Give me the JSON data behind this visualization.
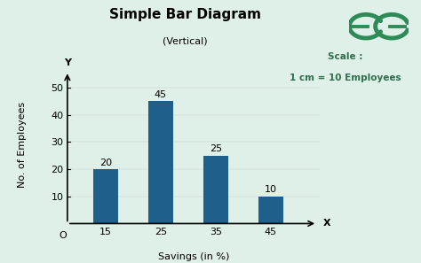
{
  "title": "Simple Bar Diagram",
  "subtitle": "(Vertical)",
  "xlabel": "Savings (in %)",
  "ylabel": "No. of Employees",
  "axis_label_x": "X",
  "axis_label_y": "Y",
  "origin_label": "O",
  "scale_line1": "Scale :",
  "scale_line2": "1 cm = 10 Employees",
  "categories": [
    15,
    25,
    35,
    45
  ],
  "values": [
    20,
    45,
    25,
    10
  ],
  "bar_color": "#1f5f8b",
  "background_color": "#dff0e8",
  "ylim": [
    0,
    58
  ],
  "yticks": [
    10,
    20,
    30,
    40,
    50
  ],
  "bar_width": 4.5,
  "title_fontsize": 11,
  "subtitle_fontsize": 8,
  "label_fontsize": 8,
  "tick_fontsize": 8,
  "value_fontsize": 8,
  "scale_fontsize": 7.5,
  "logo_color": "#2e8b57",
  "figsize": [
    4.74,
    2.97
  ],
  "dpi": 100
}
